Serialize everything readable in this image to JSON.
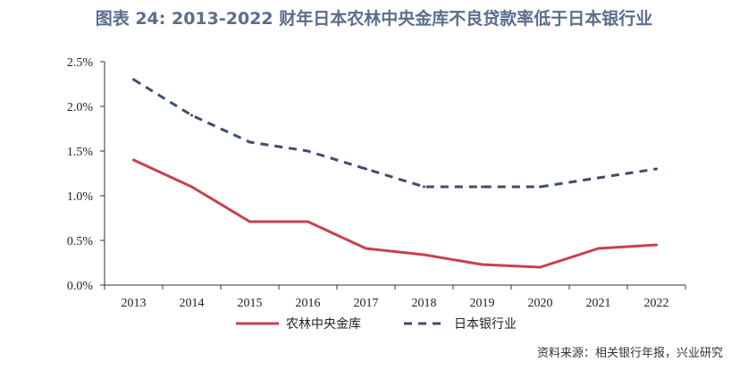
{
  "chart_data": {
    "type": "line",
    "title": "图表 24: 2013-2022 财年日本农林中央金库不良贷款率低于日本银行业",
    "categories": [
      "2013",
      "2014",
      "2015",
      "2016",
      "2017",
      "2018",
      "2019",
      "2020",
      "2021",
      "2022"
    ],
    "ylim": [
      0,
      2.5
    ],
    "yticks": [
      "0.0%",
      "0.5%",
      "1.0%",
      "1.5%",
      "2.0%",
      "2.5%"
    ],
    "grid": false,
    "legend": "bottom",
    "series": [
      {
        "name": "农林中央金库",
        "values": [
          1.4,
          1.1,
          0.71,
          0.71,
          0.41,
          0.34,
          0.23,
          0.2,
          0.41,
          0.45
        ],
        "color": "#c8404f",
        "style": "solid"
      },
      {
        "name": "日本银行业",
        "values": [
          2.3,
          1.9,
          1.6,
          1.5,
          1.3,
          1.1,
          1.1,
          1.1,
          1.2,
          1.3
        ],
        "color": "#3d4f6e",
        "style": "dashed"
      }
    ],
    "source": "资料来源：相关银行年报，兴业研究"
  }
}
